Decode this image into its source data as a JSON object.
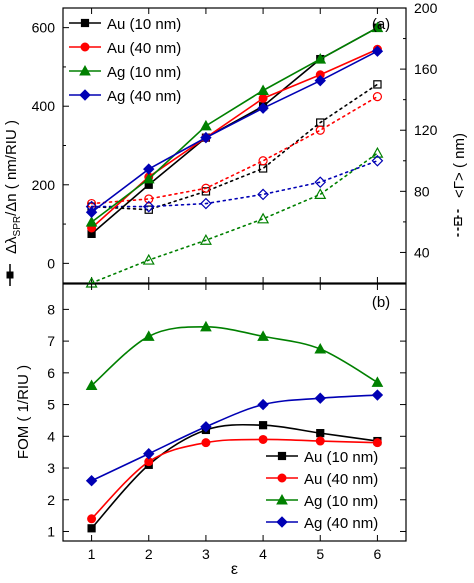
{
  "chart_data": [
    {
      "panel_label": "(a)",
      "type": "line",
      "x": [
        1,
        2,
        3,
        4,
        5,
        6
      ],
      "xlim": [
        0.5,
        6.5
      ],
      "ylim": [
        -50,
        650
      ],
      "yticks": [
        0,
        200,
        400,
        600
      ],
      "y2lim": [
        20,
        200
      ],
      "y2ticks": [
        40,
        80,
        120,
        160,
        200
      ],
      "ylabel": "Δλ",
      "ylabel_sub": "SPR",
      "ylabel_rest": "/Δn ( nm/RIU )",
      "y2label": "<Γ> ( nm)",
      "grid": false,
      "legend": "top-left",
      "series": [
        {
          "name": "Au (10 nm)",
          "color": "#000000",
          "marker": "square",
          "values": [
            75,
            200,
            320,
            400,
            520,
            600
          ]
        },
        {
          "name": "Au (40 nm)",
          "color": "#ff0000",
          "marker": "circle",
          "values": [
            90,
            220,
            320,
            420,
            480,
            545
          ]
        },
        {
          "name": "Ag (10 nm)",
          "color": "#008000",
          "marker": "triangle",
          "values": [
            105,
            215,
            350,
            440,
            520,
            600
          ]
        },
        {
          "name": "Ag (40 nm)",
          "color": "#0000b4",
          "marker": "diamond",
          "values": [
            130,
            240,
            320,
            395,
            465,
            540
          ]
        }
      ],
      "series_right": [
        {
          "color": "#000000",
          "marker": "square",
          "values": [
            70,
            68,
            80,
            95,
            125,
            150
          ]
        },
        {
          "color": "#ff0000",
          "marker": "circle",
          "values": [
            72,
            75,
            82,
            100,
            120,
            142
          ]
        },
        {
          "color": "#008000",
          "marker": "triangle",
          "values": [
            20,
            35,
            48,
            62,
            78,
            105
          ]
        },
        {
          "color": "#0000b4",
          "marker": "diamond",
          "values": [
            70,
            70,
            72,
            78,
            86,
            100
          ]
        }
      ]
    },
    {
      "panel_label": "(b)",
      "type": "line",
      "x": [
        1,
        2,
        3,
        4,
        5,
        6
      ],
      "xlim": [
        0.5,
        6.5
      ],
      "xticks": [
        1,
        2,
        3,
        4,
        5,
        6
      ],
      "ylim": [
        0.7,
        8.8
      ],
      "yticks": [
        1,
        2,
        3,
        4,
        5,
        6,
        7,
        8
      ],
      "xlabel": "ε",
      "ylabel": "FOM ( 1/RIU )",
      "grid": false,
      "legend": "bottom-right",
      "series": [
        {
          "name": "Au (10 nm)",
          "color": "#000000",
          "marker": "square",
          "values": [
            1.1,
            3.1,
            4.2,
            4.35,
            4.1,
            3.85
          ]
        },
        {
          "name": "Au (40 nm)",
          "color": "#ff0000",
          "marker": "circle",
          "values": [
            1.4,
            3.2,
            3.8,
            3.9,
            3.85,
            3.8
          ]
        },
        {
          "name": "Ag (10 nm)",
          "color": "#008000",
          "marker": "triangle",
          "values": [
            5.6,
            7.15,
            7.45,
            7.15,
            6.75,
            5.7
          ]
        },
        {
          "name": "Ag (40 nm)",
          "color": "#0000b4",
          "marker": "diamond",
          "values": [
            2.6,
            3.45,
            4.3,
            5.0,
            5.2,
            5.3
          ]
        }
      ]
    }
  ]
}
